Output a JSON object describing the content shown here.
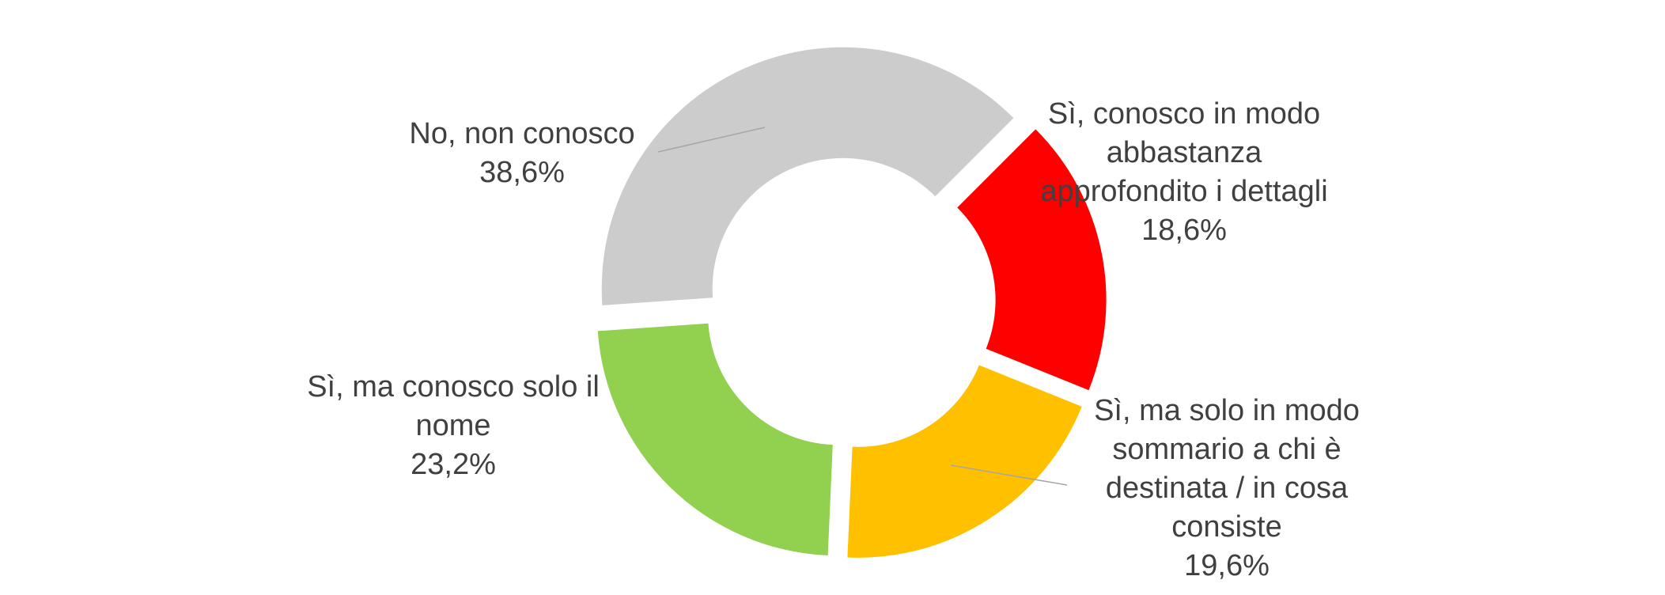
{
  "chart_data": {
    "type": "donut",
    "categories": [
      "Sì, conosco in modo abbastanza approfondito i dettagli",
      "Sì, ma solo in modo sommario a chi è destinata / in cosa consiste",
      "Sì, ma conosco solo il nome",
      "No, non conosco"
    ],
    "values": [
      18.6,
      19.6,
      23.2,
      38.6
    ],
    "value_labels": [
      "18,6%",
      "19,6%",
      "23,2%",
      "38,6%"
    ],
    "colors": [
      "#ff0000",
      "#ffc000",
      "#92d050",
      "#cccccc"
    ]
  }
}
